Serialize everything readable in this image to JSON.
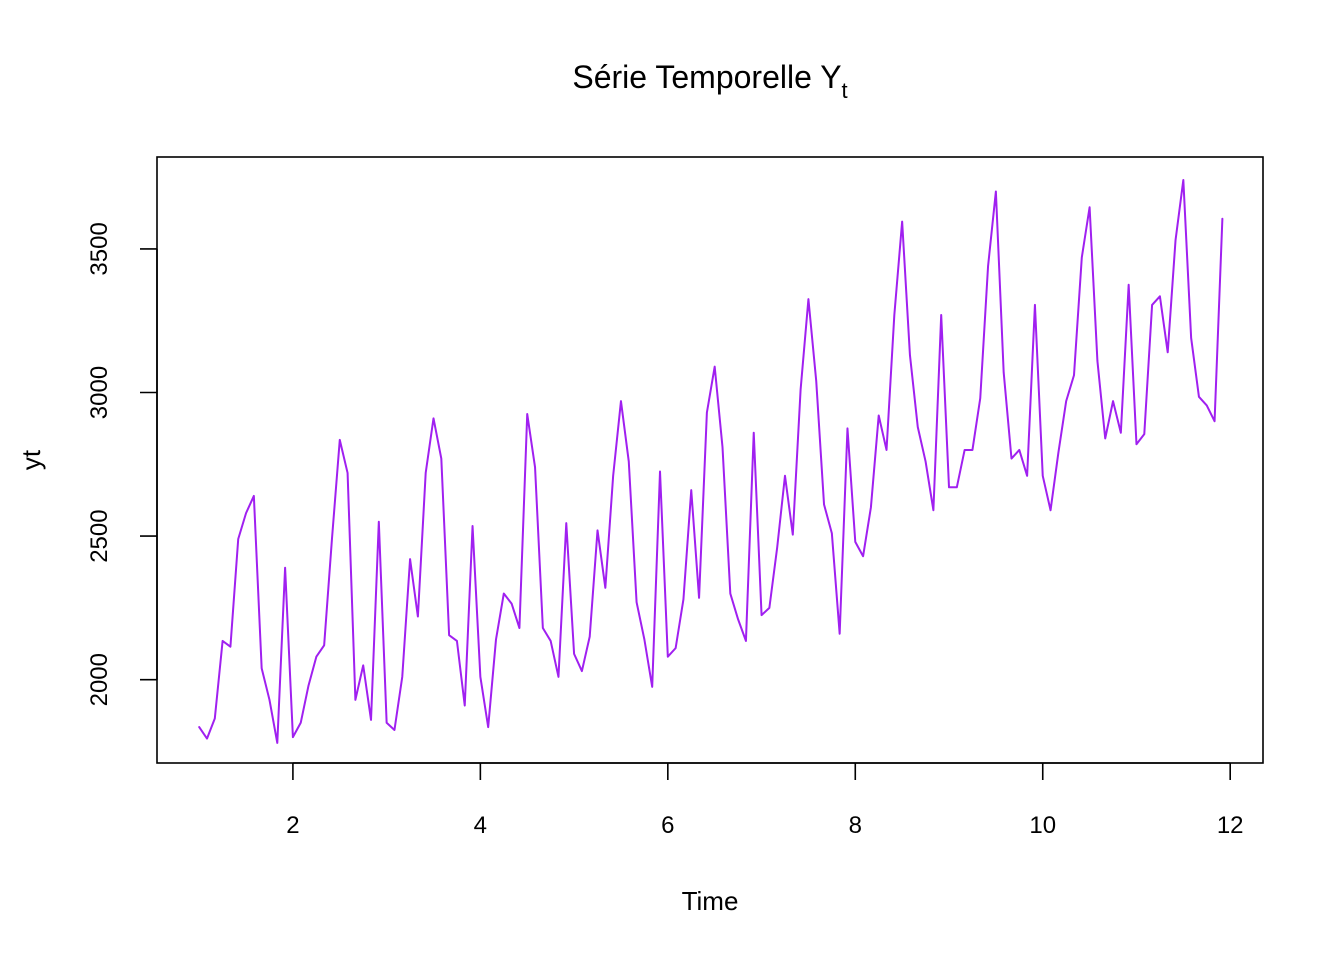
{
  "chart_data": {
    "type": "line",
    "title": "Série Temporelle Y",
    "title_subscript": "t",
    "xlabel": "Time",
    "ylabel": "yt",
    "xlim": [
      0.55,
      12.35
    ],
    "ylim": [
      1710,
      3820
    ],
    "x_ticks": [
      2,
      4,
      6,
      8,
      10,
      12
    ],
    "x_tick_labels": [
      "2",
      "4",
      "6",
      "8",
      "10",
      "12"
    ],
    "y_ticks": [
      2000,
      2500,
      3000,
      3500
    ],
    "y_tick_labels": [
      "2000",
      "2500",
      "3000",
      "3500"
    ],
    "grid": false,
    "color": "#A020F0",
    "x_start": 1,
    "frequency": 12,
    "values": [
      1835,
      1795,
      1865,
      2135,
      2115,
      2490,
      2580,
      2640,
      2040,
      1930,
      1780,
      2390,
      1800,
      1850,
      1980,
      2080,
      2120,
      2490,
      2835,
      2720,
      1930,
      2050,
      1860,
      2550,
      1850,
      1825,
      2010,
      2420,
      2220,
      2720,
      2910,
      2770,
      2155,
      2135,
      1910,
      2535,
      2010,
      1835,
      2140,
      2300,
      2265,
      2180,
      2925,
      2740,
      2180,
      2135,
      2010,
      2545,
      2090,
      2030,
      2150,
      2520,
      2320,
      2710,
      2970,
      2760,
      2270,
      2140,
      1975,
      2725,
      2080,
      2110,
      2280,
      2660,
      2285,
      2930,
      3090,
      2810,
      2300,
      2210,
      2135,
      2860,
      2225,
      2250,
      2460,
      2710,
      2505,
      3010,
      3325,
      3040,
      2610,
      2510,
      2160,
      2875,
      2480,
      2430,
      2600,
      2920,
      2800,
      3270,
      3595,
      3130,
      2880,
      2760,
      2590,
      3270,
      2670,
      2670,
      2800,
      2800,
      2980,
      3440,
      3700,
      3070,
      2770,
      2800,
      2710,
      3305,
      2710,
      2590,
      2790,
      2970,
      3060,
      3470,
      3645,
      3110,
      2840,
      2970,
      2860,
      3375,
      2820,
      2855,
      3305,
      3335,
      3140,
      3530,
      3740,
      3190,
      2985,
      2955,
      2900,
      3605
    ]
  }
}
